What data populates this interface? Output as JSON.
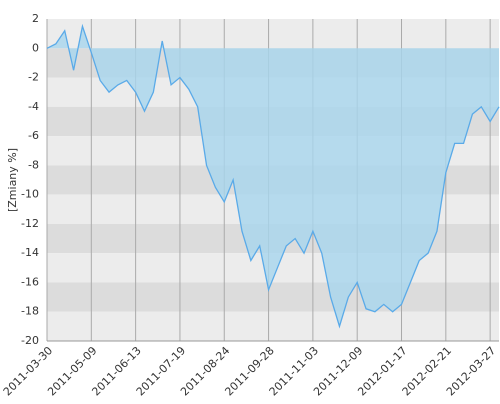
{
  "chart_data": {
    "type": "area",
    "y_label": "[Zmiany %]",
    "categories": [
      "2011-03-30",
      null,
      null,
      null,
      null,
      "2011-05-09",
      null,
      null,
      null,
      null,
      "2011-06-13",
      null,
      null,
      null,
      null,
      "2011-07-19",
      null,
      null,
      null,
      null,
      "2011-08-24",
      null,
      null,
      null,
      null,
      "2011-09-28",
      null,
      null,
      null,
      null,
      "2011-11-03",
      null,
      null,
      null,
      null,
      "2011-12-09",
      null,
      null,
      null,
      null,
      "2012-01-17",
      null,
      null,
      null,
      null,
      "2012-02-21",
      null,
      null,
      null,
      null,
      "2012-03-27",
      null
    ],
    "values": [
      0,
      0.3,
      1.2,
      -1.5,
      1.5,
      -0.3,
      -2.2,
      -3.0,
      -2.5,
      -2.2,
      -3.0,
      -4.3,
      -3.0,
      0.5,
      -2.5,
      -2.0,
      -2.8,
      -4.0,
      -8.0,
      -9.5,
      -10.5,
      -9.0,
      -12.5,
      -14.5,
      -13.5,
      -16.5,
      -15.0,
      -13.5,
      -13.0,
      -14.0,
      -12.5,
      -14.0,
      -17.0,
      -19.0,
      -17.0,
      -16.0,
      -17.8,
      -18.0,
      -17.5,
      -18.0,
      -17.5,
      -16.0,
      -14.5,
      -14.0,
      -12.5,
      -8.5,
      -6.5,
      -6.5,
      -4.5,
      -4.0,
      -5.0,
      -4.0
    ],
    "color": "#5aaae8",
    "fill": "#a8d6ee",
    "ylim": [
      -20,
      2
    ],
    "yticks": [
      2,
      0,
      -2,
      -4,
      -6,
      -8,
      -10,
      -12,
      -14,
      -16,
      -18,
      -20
    ],
    "grid": true
  }
}
